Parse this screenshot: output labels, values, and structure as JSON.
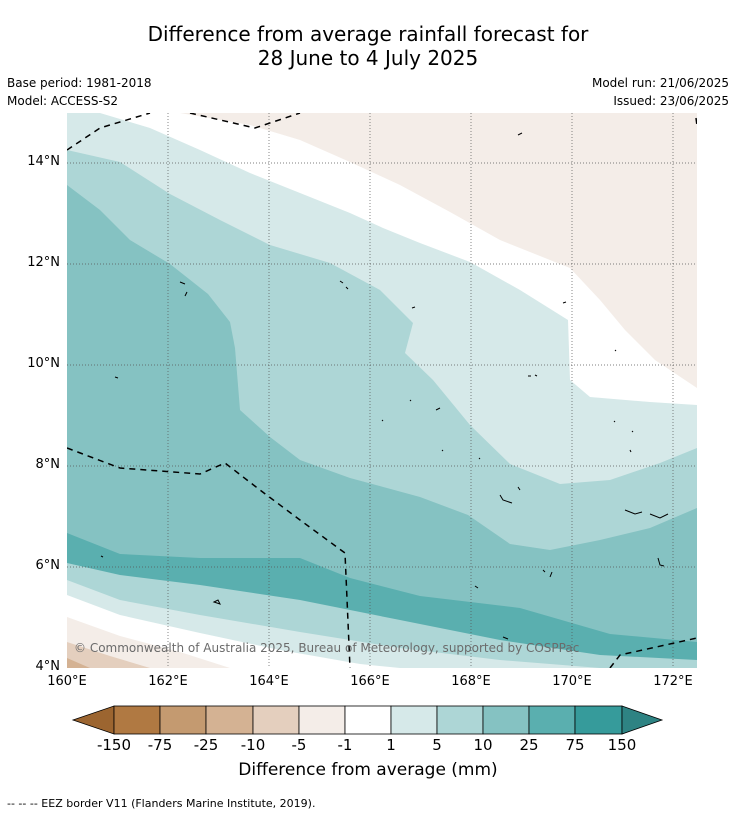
{
  "title_line1": "Difference from average rainfall forecast for",
  "title_line2": "28 June to 4 July 2025",
  "meta_left": {
    "base_period": "Base period: 1981-2018",
    "model": "Model: ACCESS-S2"
  },
  "meta_right": {
    "model_run": "Model run: 21/06/2025",
    "issued": "Issued: 23/06/2025"
  },
  "map": {
    "lon_range": [
      160,
      172.5
    ],
    "lat_range": [
      4,
      15
    ],
    "x_ticks": [
      "160°E",
      "162°E",
      "164°E",
      "166°E",
      "168°E",
      "170°E",
      "172°E"
    ],
    "y_ticks": [
      "4°N",
      "6°N",
      "8°N",
      "10°N",
      "12°N",
      "14°N"
    ],
    "copyright": "© Commonwealth of Australia 2025, Bureau of Meteorology, supported by COSPPac",
    "gridlines": "dotted"
  },
  "colorbar": {
    "labels": [
      "-150",
      "-75",
      "-25",
      "-10",
      "-5",
      "-1",
      "1",
      "5",
      "10",
      "25",
      "75",
      "150"
    ],
    "colors": [
      "#9c6530",
      "#b07942",
      "#c49a70",
      "#d4b293",
      "#e4cfbe",
      "#f4ede8",
      "#ffffff",
      "#d6e9e9",
      "#add6d6",
      "#85c2c2",
      "#5aafaf",
      "#369b9b",
      "#2e8383"
    ],
    "title": "Difference from average (mm)"
  },
  "footnote": "--  --  -- EEZ border V11 (Flanders Marine Institute, 2019)."
}
